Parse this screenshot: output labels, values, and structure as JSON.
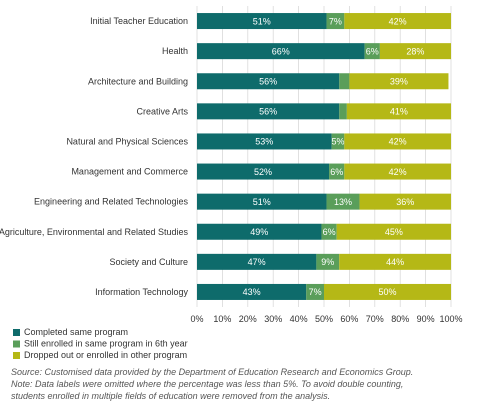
{
  "chart_data": {
    "type": "bar",
    "orientation": "horizontal",
    "stacked": true,
    "categories": [
      "Initial Teacher Education",
      "Health",
      "Architecture and Building",
      "Creative Arts",
      "Natural and Physical Sciences",
      "Management and Commerce",
      "Engineering and Related Technologies",
      "Agriculture, Environmental and Related Studies",
      "Society and Culture",
      "Information Technology"
    ],
    "series": [
      {
        "name": "Completed same program",
        "color": "#0e6b6b",
        "values": [
          51,
          66,
          56,
          56,
          53,
          52,
          51,
          49,
          47,
          43
        ],
        "labels": [
          "51%",
          "66%",
          "56%",
          "56%",
          "53%",
          "52%",
          "51%",
          "49%",
          "47%",
          "43%"
        ]
      },
      {
        "name": "Still enrolled in same program in 6th year",
        "color": "#5a9e5a",
        "values": [
          7,
          6,
          4,
          3,
          5,
          6,
          13,
          6,
          9,
          7
        ],
        "labels": [
          "7%",
          "6%",
          "",
          "",
          "5%",
          "6%",
          "13%",
          "6%",
          "9%",
          "7%"
        ]
      },
      {
        "name": "Dropped out or enrolled in other program",
        "color": "#b5b816",
        "values": [
          42,
          28,
          39,
          41,
          42,
          42,
          36,
          45,
          44,
          50
        ],
        "labels": [
          "42%",
          "28%",
          "39%",
          "41%",
          "42%",
          "42%",
          "36%",
          "45%",
          "44%",
          "50%"
        ]
      }
    ],
    "xlim": [
      0,
      100
    ],
    "xticks": [
      "0%",
      "10%",
      "20%",
      "30%",
      "40%",
      "50%",
      "60%",
      "70%",
      "80%",
      "90%",
      "100%"
    ],
    "grid": true,
    "legend_position": "bottom-left"
  },
  "source_note": {
    "line1": "Source: Customised data provided by the Department of Education Research and Economics Group.",
    "line2": "Note: Data labels were omitted where the percentage was less than 5%. To avoid double counting,",
    "line3": "students enrolled in multiple fields of education were removed from the analysis."
  }
}
